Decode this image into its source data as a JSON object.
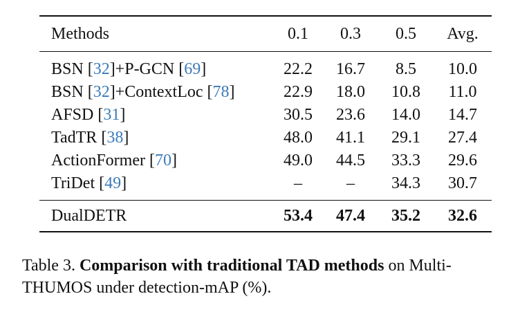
{
  "table": {
    "headers": [
      "Methods",
      "0.1",
      "0.3",
      "0.5",
      "Avg."
    ],
    "rows": [
      {
        "method": "BSN",
        "ref1": "32",
        "join": "]+P-GCN [",
        "ref2": "69",
        "values": [
          "22.2",
          "16.7",
          "8.5",
          "10.0"
        ]
      },
      {
        "method": "BSN",
        "ref1": "32",
        "join": "]+ContextLoc [",
        "ref2": "78",
        "values": [
          "22.9",
          "18.0",
          "10.8",
          "11.0"
        ]
      },
      {
        "method": "AFSD",
        "ref1": "31",
        "values": [
          "30.5",
          "23.6",
          "14.0",
          "14.7"
        ]
      },
      {
        "method": "TadTR",
        "ref1": "38",
        "values": [
          "48.0",
          "41.1",
          "29.1",
          "27.4"
        ]
      },
      {
        "method": "ActionFormer",
        "ref1": "70",
        "values": [
          "49.0",
          "44.5",
          "33.3",
          "29.6"
        ]
      },
      {
        "method": "TriDet",
        "ref1": "49",
        "values": [
          "–",
          "–",
          "34.3",
          "30.7"
        ]
      }
    ],
    "proposed": {
      "method": "DualDETR",
      "values": [
        "53.4",
        "47.4",
        "35.2",
        "32.6"
      ]
    }
  },
  "caption": {
    "label": "Table 3.",
    "bold": "Comparison with traditional TAD methods",
    "rest": "on Multi-THUMOS under detection-mAP (%)."
  },
  "colors": {
    "text": "#111111",
    "citation": "#3a7ab8"
  }
}
